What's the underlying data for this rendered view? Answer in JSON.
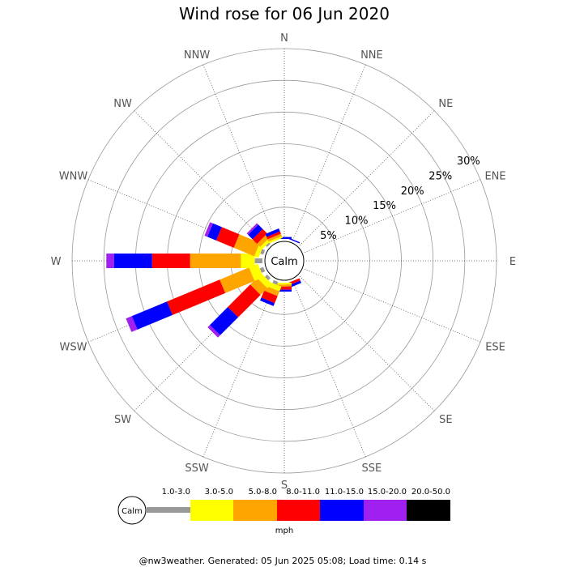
{
  "chart_data": {
    "type": "wind-rose",
    "title": "Wind rose for 06 Jun 2020",
    "directions": [
      "N",
      "NNE",
      "NE",
      "ENE",
      "E",
      "ESE",
      "SE",
      "SSE",
      "S",
      "SSW",
      "SW",
      "WSW",
      "W",
      "WNW",
      "NW",
      "NNW"
    ],
    "ring_labels": [
      "5%",
      "10%",
      "15%",
      "20%",
      "25%",
      "30%"
    ],
    "ring_values": [
      5,
      10,
      15,
      20,
      25,
      30
    ],
    "r_max": 30,
    "calm_label": "Calm",
    "units": "mph",
    "speed_bins": [
      {
        "label": "1.0-3.0",
        "color": "#999999"
      },
      {
        "label": "3.0-5.0",
        "color": "#ffff00"
      },
      {
        "label": "5.0-8.0",
        "color": "#ffa500"
      },
      {
        "label": "8.0-11.0",
        "color": "#ff0000"
      },
      {
        "label": "11.0-15.0",
        "color": "#0000ff"
      },
      {
        "label": "15.0-20.0",
        "color": "#a020f0"
      },
      {
        "label": "20.0-50.0",
        "color": "#000000"
      }
    ],
    "series": [
      {
        "direction": "N",
        "values": [
          0,
          0,
          0,
          0,
          0.3,
          0,
          0
        ]
      },
      {
        "direction": "NNE",
        "values": [
          0,
          0,
          0,
          0,
          0.2,
          0,
          0
        ]
      },
      {
        "direction": "NE",
        "values": [
          0,
          0,
          0,
          0,
          0,
          0,
          0
        ]
      },
      {
        "direction": "ENE",
        "values": [
          0,
          0,
          0,
          0,
          0,
          0,
          0
        ]
      },
      {
        "direction": "E",
        "values": [
          0,
          0,
          0,
          0,
          0,
          0,
          0
        ]
      },
      {
        "direction": "ESE",
        "values": [
          0,
          0,
          0,
          0,
          0,
          0,
          0
        ]
      },
      {
        "direction": "SE",
        "values": [
          0,
          0,
          0,
          0,
          0,
          0,
          0
        ]
      },
      {
        "direction": "SSE",
        "values": [
          0,
          0,
          0,
          0.4,
          0.4,
          0,
          0
        ]
      },
      {
        "direction": "S",
        "values": [
          0,
          0.3,
          0.3,
          0.5,
          0.3,
          0,
          0
        ]
      },
      {
        "direction": "SSW",
        "values": [
          0.5,
          0.8,
          0.8,
          1.2,
          0.5,
          0,
          0
        ]
      },
      {
        "direction": "SW",
        "values": [
          0.5,
          1.0,
          1.5,
          5.0,
          4.0,
          0.5,
          0
        ]
      },
      {
        "direction": "WSW",
        "values": [
          0.6,
          1.5,
          5.0,
          9.0,
          6.0,
          1.0,
          0
        ]
      },
      {
        "direction": "W",
        "values": [
          1.2,
          2.2,
          8.0,
          6.0,
          6.0,
          1.2,
          0
        ]
      },
      {
        "direction": "WNW",
        "values": [
          0.5,
          0.7,
          3.5,
          3.0,
          1.5,
          0.5,
          0
        ]
      },
      {
        "direction": "NW",
        "values": [
          0.3,
          0.5,
          0.7,
          1.0,
          1.0,
          0.3,
          0
        ]
      },
      {
        "direction": "NNW",
        "values": [
          0,
          0.3,
          0.4,
          0.4,
          0.5,
          0,
          0
        ]
      }
    ]
  },
  "footer": "@nw3weather. Generated: 05 Jun 2025 05:08; Load time: 0.14 s"
}
